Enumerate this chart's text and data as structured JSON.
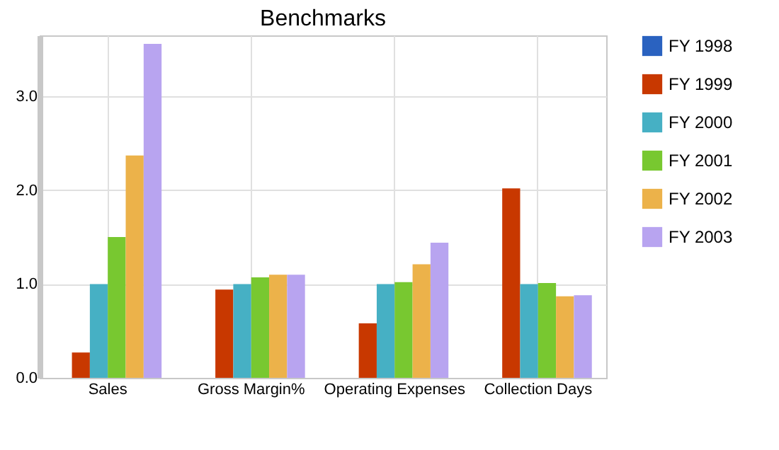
{
  "chart_data": {
    "type": "bar",
    "title": "Benchmarks",
    "categories": [
      "Sales",
      "Gross Margin%",
      "Operating Expenses",
      "Collection Days"
    ],
    "series": [
      {
        "name": "FY 1998",
        "color": "#2a62c0",
        "values": [
          0,
          0,
          0,
          0
        ]
      },
      {
        "name": "FY 1999",
        "color": "#c83800",
        "values": [
          0.27,
          0.94,
          0.58,
          2.02
        ]
      },
      {
        "name": "FY 2000",
        "color": "#46b0c4",
        "values": [
          1.0,
          1.0,
          1.0,
          1.0
        ]
      },
      {
        "name": "FY 2001",
        "color": "#78c830",
        "values": [
          1.5,
          1.07,
          1.02,
          1.01
        ]
      },
      {
        "name": "FY 2002",
        "color": "#ecb24a",
        "values": [
          2.37,
          1.1,
          1.21,
          0.87
        ]
      },
      {
        "name": "FY 2003",
        "color": "#b8a4f0",
        "values": [
          3.56,
          1.1,
          1.44,
          0.88
        ]
      }
    ],
    "ylim": [
      0,
      3.65
    ],
    "yticks": [
      {
        "value": 0,
        "label": "0.0"
      },
      {
        "value": 1,
        "label": "1.0"
      },
      {
        "value": 2,
        "label": "2.0"
      },
      {
        "value": 3,
        "label": "3.0"
      }
    ],
    "grid": true,
    "legend": "right"
  }
}
